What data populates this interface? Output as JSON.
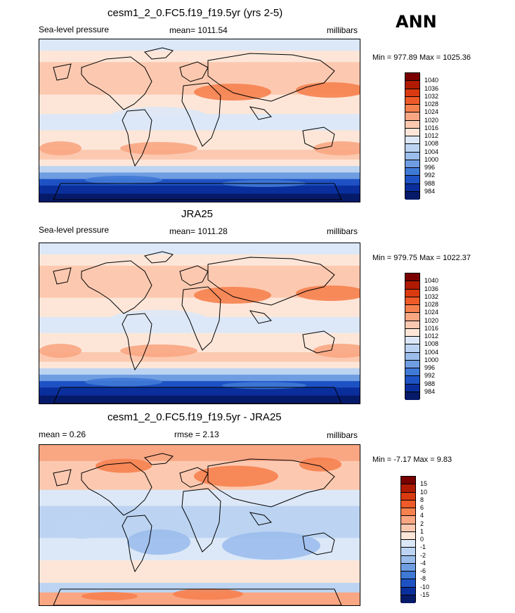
{
  "season": "ANN",
  "panels": [
    {
      "title": "cesm1_2_0.FC5.f19_f19.5yr (yrs 2-5)",
      "left_label": "Sea-level pressure",
      "center_label": "mean= 1011.54",
      "right_label": "millibars",
      "minmax": "Min = 977.89 Max = 1025.36",
      "colorbar": {
        "levels": [
          "1040",
          "1036",
          "1032",
          "1028",
          "1024",
          "1020",
          "1016",
          "1012",
          "1008",
          "1004",
          "1000",
          "996",
          "992",
          "988",
          "984"
        ],
        "colors": [
          "#7a0000",
          "#b01a00",
          "#d93a10",
          "#ee5a28",
          "#f6814f",
          "#f9a683",
          "#fcc9b0",
          "#fde6d8",
          "#dce8f7",
          "#bcd4f2",
          "#9bbdec",
          "#6f9de2",
          "#3f79d6",
          "#1e52c4",
          "#0a2f9c",
          "#061a6a"
        ]
      },
      "map_style": "model"
    },
    {
      "title": "JRA25",
      "left_label": "Sea-level pressure",
      "center_label": "mean= 1011.28",
      "right_label": "millibars",
      "minmax": "Min = 979.75 Max = 1022.37",
      "colorbar": {
        "levels": [
          "1040",
          "1036",
          "1032",
          "1028",
          "1024",
          "1020",
          "1016",
          "1012",
          "1008",
          "1004",
          "1000",
          "996",
          "992",
          "988",
          "984"
        ],
        "colors": [
          "#7a0000",
          "#b01a00",
          "#d93a10",
          "#ee5a28",
          "#f6814f",
          "#f9a683",
          "#fcc9b0",
          "#fde6d8",
          "#dce8f7",
          "#bcd4f2",
          "#9bbdec",
          "#6f9de2",
          "#3f79d6",
          "#1e52c4",
          "#0a2f9c",
          "#061a6a"
        ]
      },
      "map_style": "obs"
    },
    {
      "title": "cesm1_2_0.FC5.f19_f19.5yr - JRA25",
      "left_label": "mean =   0.26",
      "center_label": "rmse =   2.13",
      "right_label": "millibars",
      "minmax": "Min =  -7.17 Max =   9.83",
      "colorbar": {
        "levels": [
          "15",
          "10",
          "8",
          "6",
          "4",
          "2",
          "1",
          "0",
          "-1",
          "-2",
          "-4",
          "-6",
          "-8",
          "-10",
          "-15"
        ],
        "colors": [
          "#7a0000",
          "#b01a00",
          "#d93a10",
          "#ee5a28",
          "#f6814f",
          "#f9a683",
          "#fcc9b0",
          "#fde6d8",
          "#dce8f7",
          "#bcd4f2",
          "#9bbdec",
          "#6f9de2",
          "#3f79d6",
          "#1e52c4",
          "#0a2f9c",
          "#061a6a"
        ]
      },
      "map_style": "diff"
    }
  ]
}
